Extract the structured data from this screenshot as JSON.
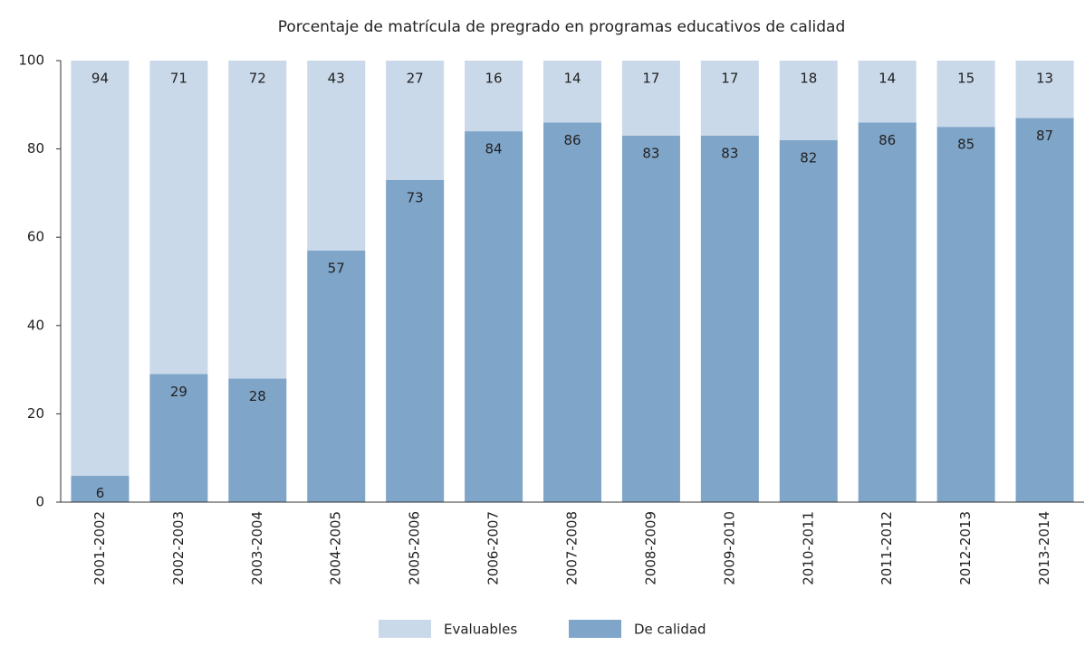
{
  "chart_data": {
    "type": "stacked_bar",
    "title": "Porcentaje de matrícula de pregrado en programas educativos de calidad",
    "categories": [
      "2001-2002",
      "2002-2003",
      "2003-2004",
      "2004-2005",
      "2005-2006",
      "2006-2007",
      "2007-2008",
      "2008-2009",
      "2009-2010",
      "2010-2011",
      "2011-2012",
      "2012-2013",
      "2013-2014"
    ],
    "series": [
      {
        "name": "Evaluables",
        "color": "#c9d9ea",
        "values": [
          94,
          71,
          72,
          43,
          27,
          16,
          14,
          17,
          17,
          18,
          14,
          15,
          13
        ]
      },
      {
        "name": "De calidad",
        "color": "#7fa5c9",
        "values": [
          6,
          29,
          28,
          57,
          73,
          84,
          86,
          83,
          83,
          82,
          86,
          85,
          87
        ]
      }
    ],
    "ylim": [
      0,
      100
    ],
    "yticks": [
      0,
      20,
      40,
      60,
      80,
      100
    ],
    "legend": "bottom"
  }
}
